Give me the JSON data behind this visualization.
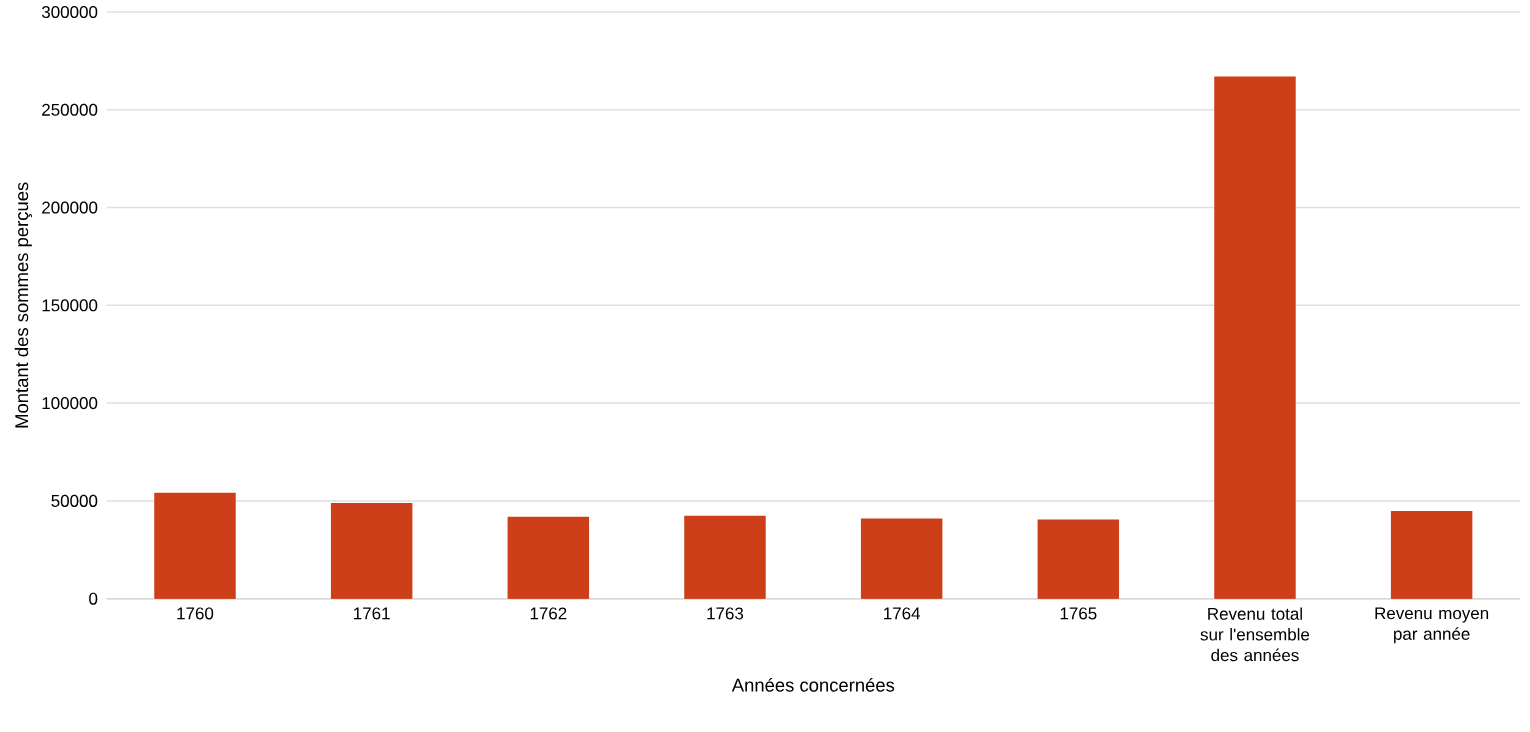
{
  "chart_data": {
    "type": "bar",
    "xlabel": "Années concernées",
    "ylabel": "Montant des sommes perçues",
    "categories": [
      "1760",
      "1761",
      "1762",
      "1763",
      "1764",
      "1765",
      "Revenu total sur l'ensemble des années",
      "Revenu moyen par année"
    ],
    "values": [
      53800,
      48600,
      41500,
      42000,
      40600,
      40100,
      266600,
      44400
    ],
    "color": "#cc3f19",
    "ylim": [
      0,
      300000
    ],
    "yticks": [
      0,
      50000,
      100000,
      150000,
      200000,
      250000,
      300000
    ],
    "grid": "y"
  }
}
